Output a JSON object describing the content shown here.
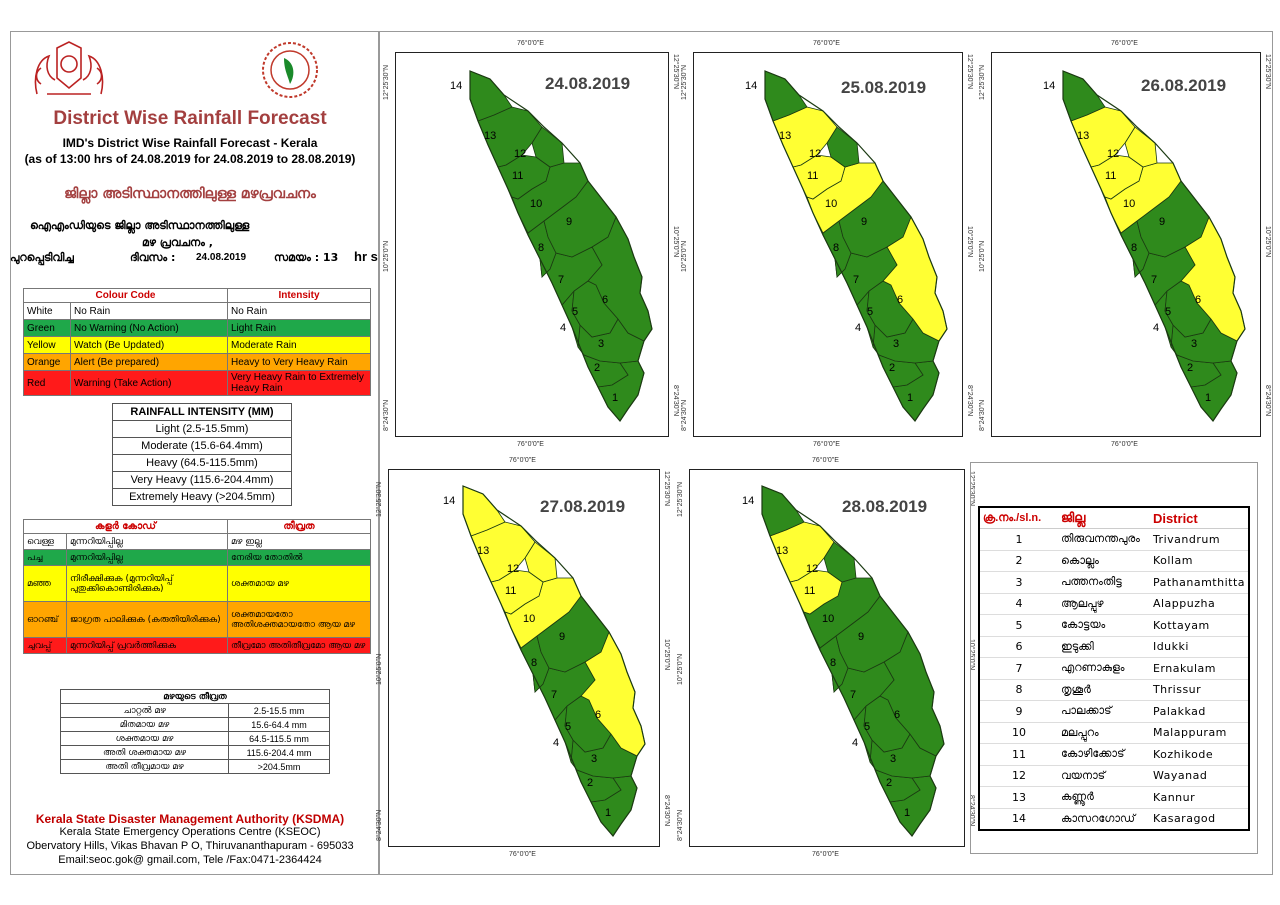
{
  "header": {
    "title": "District Wise Rainfall Forecast",
    "subtitle": "IMD's District Wise Rainfall Forecast - Kerala",
    "asof": "(as of 13:00 hrs of 24.08.2019  for 24.08.2019  to 28.08.2019)",
    "ml_title": "ജില്ലാ അടിസ്ഥാനത്തിലുള്ള മഴപ്രവചനം",
    "ml_line1": "ഐഎംഡിയുടെ ജില്ലാ    അടിസ്ഥാനത്തിലുള്ള",
    "ml_line2": "മഴ പ്രവചനം  ,",
    "ml_issued_label": "പുറപ്പെടിവിച്ച",
    "ml_date_label": "ദിവസം :",
    "issued_date": "24.08.2019",
    "ml_time_label": "സമയം : 13",
    "hrs": "hr s"
  },
  "colour_code": {
    "head_left": "Colour Code",
    "head_right": "Intensity",
    "rows": [
      {
        "name": "White",
        "meaning": "No Rain",
        "intensity": "No Rain",
        "color": "#ffffff"
      },
      {
        "name": "Green",
        "meaning": "No Warning (No Action)",
        "intensity": "Light Rain",
        "color": "#1fa84a"
      },
      {
        "name": "Yellow",
        "meaning": "Watch (Be Updated)",
        "intensity": "Moderate Rain",
        "color": "#ffff00"
      },
      {
        "name": "Orange",
        "meaning": "Alert (Be prepared)",
        "intensity": "Heavy to Very Heavy Rain",
        "color": "#ffa500"
      },
      {
        "name": "Red",
        "meaning": "Warning (Take Action)",
        "intensity": "Very Heavy Rain to Extremely Heavy Rain",
        "color": "#ff1a1a"
      }
    ]
  },
  "rainfall_intensity": {
    "title": "RAINFALL INTENSITY (MM)",
    "rows": [
      "Light (2.5-15.5mm)",
      "Moderate (15.6-64.4mm)",
      "Heavy (64.5-115.5mm)",
      "Very Heavy (115.6-204.4mm)",
      "Extremely Heavy (>204.5mm)"
    ]
  },
  "ml_colour_code": {
    "head_left": "കളർ കോഡ്",
    "head_right": "തീവ്രത",
    "rows": [
      {
        "name": "വെള്ള",
        "meaning": "മുന്നറിയിപ്പില്ല",
        "intensity": "മഴ ഇല്ല",
        "color": "#ffffff"
      },
      {
        "name": "പച്ച",
        "meaning": "മുന്നറിയിപ്പില്ല",
        "intensity": "നേരിയ തോതിൽ",
        "color": "#1fa84a"
      },
      {
        "name": "മഞ്ഞ",
        "meaning": "നിരീക്ഷിക്കുക (മുന്നറിയിപ്പ് പുതുക്കികൊണ്ടിരിക്കുക)",
        "intensity": "ശക്തമായ മഴ",
        "color": "#ffff00"
      },
      {
        "name": "ഓറഞ്ച്",
        "meaning": "ജാഗ്രത പാലിക്കുക (കരുതിയിരിക്കുക)",
        "intensity": "ശക്തമായതോ അതിശക്തമായതോ ആയ മഴ",
        "color": "#ffa500"
      },
      {
        "name": "ചുവപ്പ്",
        "meaning": "മുന്നറിയിപ്പ് പ്രവർത്തിക്കുക",
        "intensity": "തീവ്രമോ അതിതീവ്രമോ ആയ മഴ",
        "color": "#ff1a1a"
      }
    ]
  },
  "ml_intensity": {
    "title": "മഴയുടെ തീവ്രത",
    "rows": [
      {
        "name": "ചാറ്റൽ മഴ",
        "range": "2.5-15.5 mm"
      },
      {
        "name": "മിതമായ മഴ",
        "range": "15.6-64.4 mm"
      },
      {
        "name": "ശക്തമായ മഴ",
        "range": "64.5-115.5 mm"
      },
      {
        "name": "അതി ശക്തമായ മഴ",
        "range": "115.6-204.4 mm"
      },
      {
        "name": "അതി തീവ്രമായ മഴ",
        "range": ">204.5mm"
      }
    ]
  },
  "footer": {
    "org": "Kerala State Disaster Management Authority (KSDMA)",
    "line1": "Kerala State Emergency Operations Centre (KSEOC)",
    "line2": "Obervatory Hills, Vikas Bhavan P O, Thiruvananthapuram - 695033",
    "line3": "Email:seoc.gok@ gmail.com, Tele /Fax:0471-2364424"
  },
  "coords": {
    "lon": "76°0'0\"E",
    "lat_n": "12°25'30\"N",
    "lat_m": "10°25'0\"N",
    "lat_s": "8°24'30\"N"
  },
  "maps": [
    {
      "date": "24.08.2019",
      "yellow": []
    },
    {
      "date": "25.08.2019",
      "yellow": [
        6,
        10,
        11,
        13
      ]
    },
    {
      "date": "26.08.2019",
      "yellow": [
        6,
        10,
        11,
        12,
        13
      ]
    },
    {
      "date": "27.08.2019",
      "yellow": [
        6,
        10,
        11,
        12,
        13,
        14
      ]
    },
    {
      "date": "28.08.2019",
      "yellow": [
        11,
        13
      ]
    }
  ],
  "district_table": {
    "head_no": "ക്ര.നം./sl.n.",
    "head_ml": "ജില്ല",
    "head_en": "District",
    "rows": [
      {
        "no": "1",
        "ml": "തിരുവനന്തപുരം",
        "en": "Trivandrum"
      },
      {
        "no": "2",
        "ml": "കൊല്ലം",
        "en": "Kollam"
      },
      {
        "no": "3",
        "ml": "പത്തനംതിട്ട",
        "en": "Pathanamthitta"
      },
      {
        "no": "4",
        "ml": "ആലപ്പുഴ",
        "en": "Alappuzha"
      },
      {
        "no": "5",
        "ml": "കോട്ടയം",
        "en": "Kottayam"
      },
      {
        "no": "6",
        "ml": "ഇടുക്കി",
        "en": "Idukki"
      },
      {
        "no": "7",
        "ml": "എറണാകുളം",
        "en": "Ernakulam"
      },
      {
        "no": "8",
        "ml": "തൃശൂർ",
        "en": "Thrissur"
      },
      {
        "no": "9",
        "ml": "പാലക്കാട്",
        "en": "Palakkad"
      },
      {
        "no": "10",
        "ml": "മലപ്പുറം",
        "en": "Malappuram"
      },
      {
        "no": "11",
        "ml": "കോഴിക്കോട്",
        "en": "Kozhikode"
      },
      {
        "no": "12",
        "ml": "വയനാട്",
        "en": "Wayanad"
      },
      {
        "no": "13",
        "ml": "കണ്ണൂർ",
        "en": "Kannur"
      },
      {
        "no": "14",
        "ml": "കാസറഗോഡ്",
        "en": "Kasaragod"
      }
    ]
  },
  "colors": {
    "green": "#2f8a1c",
    "yellow": "#ffff33",
    "title": "#a33f3f",
    "red_text": "#c00000"
  },
  "icons": [
    "kerala-emblem-icon",
    "ksdma-logo-icon"
  ]
}
